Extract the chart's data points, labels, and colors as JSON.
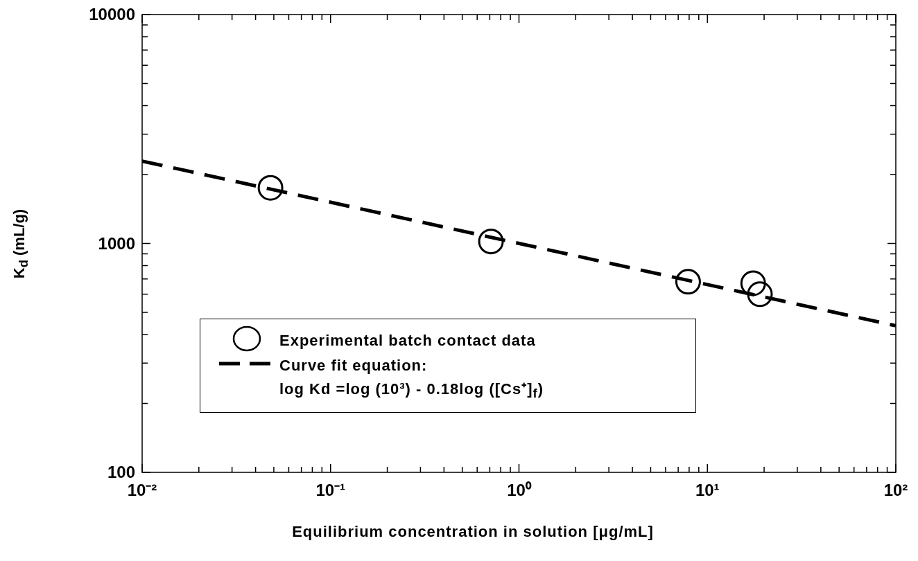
{
  "chart_data": {
    "type": "scatter",
    "xlabel": "Equilibrium concentration in solution [μg/mL]",
    "ylabel": "K$_{d}$ (mL/g)",
    "log": "xy",
    "xlim": [
      0.01,
      100
    ],
    "ylim": [
      100,
      10000
    ],
    "xticks": [
      {
        "value": 0.01,
        "label": "10⁻²"
      },
      {
        "value": 0.02,
        "label": null
      },
      {
        "value": 0.03,
        "label": null
      },
      {
        "value": 0.04,
        "label": null
      },
      {
        "value": 0.05,
        "label": null
      },
      {
        "value": 0.06,
        "label": null
      },
      {
        "value": 0.07,
        "label": null
      },
      {
        "value": 0.08,
        "label": null
      },
      {
        "value": 0.09,
        "label": null
      },
      {
        "value": 0.1,
        "label": "10⁻¹"
      },
      {
        "value": 0.2,
        "label": null
      },
      {
        "value": 0.3,
        "label": null
      },
      {
        "value": 0.4,
        "label": null
      },
      {
        "value": 0.5,
        "label": null
      },
      {
        "value": 0.6,
        "label": null
      },
      {
        "value": 0.7,
        "label": null
      },
      {
        "value": 0.8,
        "label": null
      },
      {
        "value": 0.9,
        "label": null
      },
      {
        "value": 1,
        "label": "10⁰"
      },
      {
        "value": 2,
        "label": null
      },
      {
        "value": 3,
        "label": null
      },
      {
        "value": 4,
        "label": null
      },
      {
        "value": 5,
        "label": null
      },
      {
        "value": 6,
        "label": null
      },
      {
        "value": 7,
        "label": null
      },
      {
        "value": 8,
        "label": null
      },
      {
        "value": 9,
        "label": null
      },
      {
        "value": 10,
        "label": "10¹"
      },
      {
        "value": 20,
        "label": null
      },
      {
        "value": 30,
        "label": null
      },
      {
        "value": 40,
        "label": null
      },
      {
        "value": 50,
        "label": null
      },
      {
        "value": 60,
        "label": null
      },
      {
        "value": 70,
        "label": null
      },
      {
        "value": 80,
        "label": null
      },
      {
        "value": 90,
        "label": null
      },
      {
        "value": 100,
        "label": "10²"
      }
    ],
    "yticks": [
      100,
      {
        "value": 200,
        "label": null
      },
      {
        "value": 300,
        "label": null
      },
      {
        "value": 400,
        "label": null
      },
      {
        "value": 500,
        "label": null
      },
      {
        "value": 600,
        "label": null
      },
      {
        "value": 700,
        "label": null
      },
      {
        "value": 800,
        "label": null
      },
      {
        "value": 900,
        "label": null
      },
      1000,
      {
        "value": 2000,
        "label": null
      },
      {
        "value": 3000,
        "label": null
      },
      {
        "value": 4000,
        "label": null
      },
      {
        "value": 5000,
        "label": null
      },
      {
        "value": 6000,
        "label": null
      },
      {
        "value": 7000,
        "label": null
      },
      {
        "value": 8000,
        "label": null
      },
      {
        "value": 9000,
        "label": null
      },
      10000
    ],
    "legend": "bottom left",
    "marker": "circle",
    "series": [
      {
        "name": "Experimental batch contact data",
        "color": "#000000",
        "x": [
          0.048,
          0.71,
          7.9,
          17.5,
          19
        ],
        "values": [
          1750,
          1020,
          680,
          670,
          600
        ]
      },
      {
        "name": "Curve fit equation:\nlog Kd =log (10³) - 0.18log ([Cs⁺]$_{f}$)",
        "type": "line",
        "line_style": "dashed",
        "marker": "none",
        "color": "#000000",
        "x": [
          0.01,
          100
        ],
        "values": [
          2290,
          437
        ]
      }
    ]
  }
}
